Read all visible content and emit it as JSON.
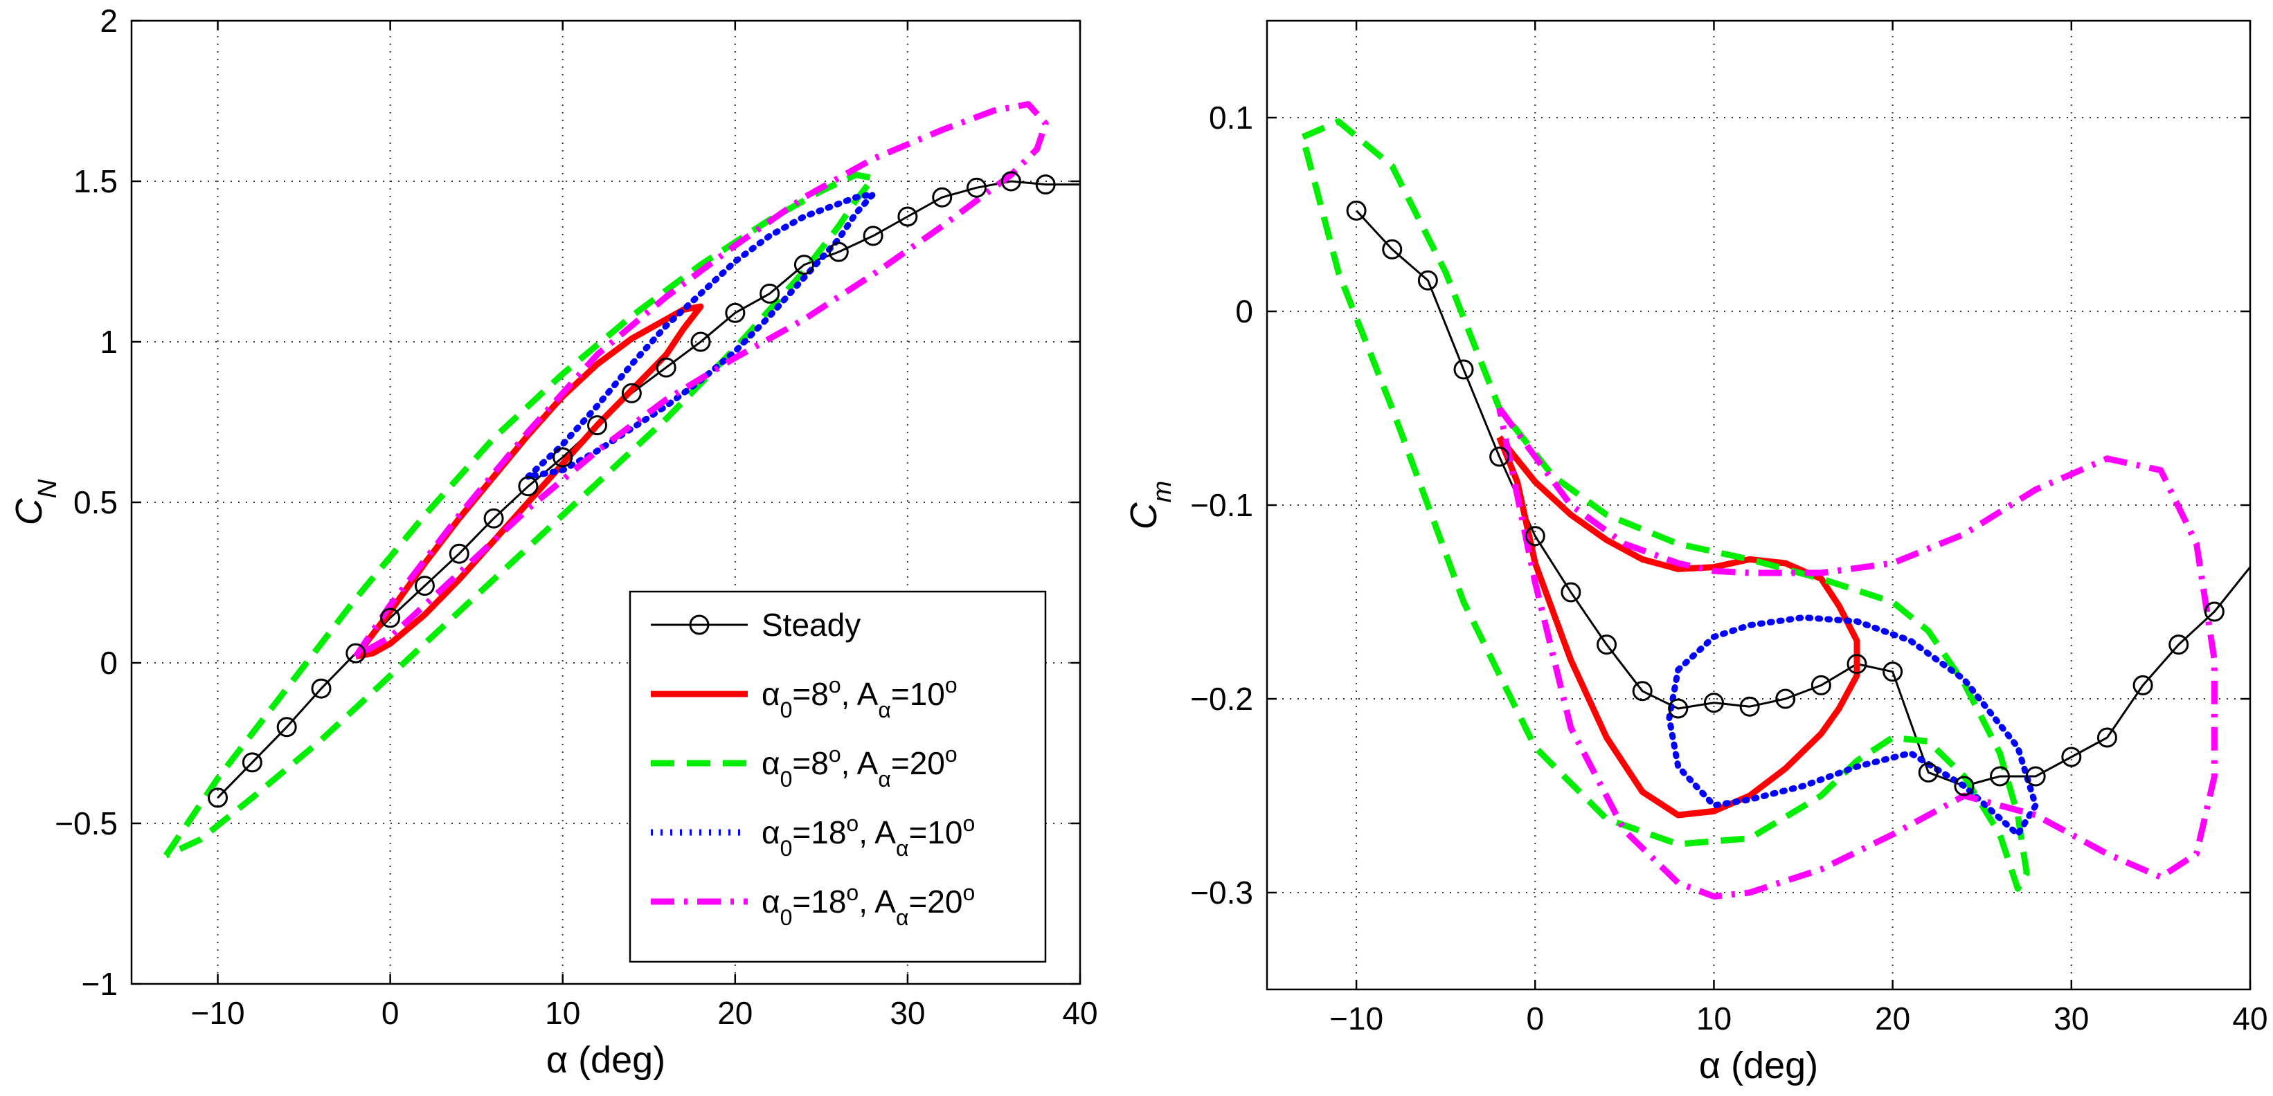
{
  "chart_data": [
    {
      "type": "line",
      "xlabel": "α (deg)",
      "ylabel": "C_N",
      "xlim": [
        -15,
        40
      ],
      "ylim": [
        -1,
        2
      ],
      "grid": true,
      "legend_position": "bottom-right",
      "x_ticks": [
        -10,
        0,
        10,
        20,
        30,
        40
      ],
      "y_ticks": [
        -1,
        -0.5,
        0,
        0.5,
        1,
        1.5,
        2
      ],
      "x_tick_labels": [
        "−10",
        "0",
        "10",
        "20",
        "30",
        "40"
      ],
      "y_tick_labels": [
        "−1",
        "−0.5",
        "0",
        "0.5",
        "1",
        "1.5",
        "2"
      ],
      "series": [
        {
          "name": "Steady",
          "color": "#000000",
          "style": "solid",
          "marker": "circle",
          "x": [
            -10,
            -8,
            -6,
            -4,
            -2,
            0,
            2,
            4,
            6,
            8,
            10,
            12,
            14,
            16,
            18,
            20,
            22,
            24,
            26,
            28,
            30,
            32,
            34,
            36,
            38,
            40
          ],
          "y": [
            -0.42,
            -0.31,
            -0.2,
            -0.08,
            0.03,
            0.14,
            0.24,
            0.34,
            0.45,
            0.55,
            0.64,
            0.74,
            0.84,
            0.92,
            1.0,
            1.09,
            1.15,
            1.24,
            1.28,
            1.33,
            1.39,
            1.45,
            1.48,
            1.5,
            1.49,
            1.49
          ]
        },
        {
          "name": "α0=8°, Aα=10°",
          "color": "#ff0000",
          "style": "solid",
          "x": [
            -2,
            0,
            2,
            4,
            6,
            8,
            10,
            12,
            14,
            16,
            17,
            18,
            17,
            16,
            14,
            12,
            10,
            8,
            6,
            4,
            2,
            0,
            -1,
            -2
          ],
          "y": [
            0.02,
            0.16,
            0.31,
            0.45,
            0.58,
            0.71,
            0.83,
            0.93,
            1.01,
            1.07,
            1.1,
            1.11,
            1.04,
            0.96,
            0.85,
            0.74,
            0.62,
            0.5,
            0.38,
            0.26,
            0.15,
            0.06,
            0.03,
            0.02
          ]
        },
        {
          "name": "α0=8°, Aα=20°",
          "color": "#00ee00",
          "style": "dashed",
          "x": [
            -13,
            -12,
            -10,
            -6,
            -2,
            2,
            6,
            10,
            14,
            18,
            22,
            25,
            27,
            28,
            27,
            26,
            24,
            20,
            16,
            12,
            8,
            4,
            0,
            -4,
            -8,
            -11,
            -13
          ],
          "y": [
            -0.6,
            -0.52,
            -0.36,
            -0.08,
            0.2,
            0.46,
            0.7,
            0.9,
            1.08,
            1.24,
            1.38,
            1.47,
            1.52,
            1.51,
            1.44,
            1.36,
            1.22,
            0.98,
            0.76,
            0.56,
            0.36,
            0.16,
            -0.04,
            -0.24,
            -0.42,
            -0.55,
            -0.6
          ]
        },
        {
          "name": "α0=18°, Aα=10°",
          "color": "#0000ff",
          "style": "dotted",
          "x": [
            8,
            10,
            12,
            14,
            16,
            18,
            20,
            22,
            24,
            26,
            27,
            28,
            27,
            26,
            24,
            22,
            20,
            18,
            16,
            14,
            12,
            10,
            8
          ],
          "y": [
            0.58,
            0.68,
            0.8,
            0.93,
            1.05,
            1.15,
            1.25,
            1.33,
            1.39,
            1.43,
            1.45,
            1.46,
            1.4,
            1.32,
            1.2,
            1.08,
            0.97,
            0.88,
            0.8,
            0.73,
            0.66,
            0.6,
            0.58
          ]
        },
        {
          "name": "α0=18°, Aα=20°",
          "color": "#ff00ff",
          "style": "dashdot",
          "x": [
            -2,
            0,
            4,
            8,
            12,
            16,
            20,
            24,
            28,
            32,
            35,
            37,
            38,
            37.5,
            36,
            32,
            28,
            24,
            20,
            16,
            12,
            8,
            4,
            0,
            -2
          ],
          "y": [
            0.02,
            0.18,
            0.46,
            0.72,
            0.96,
            1.14,
            1.3,
            1.45,
            1.57,
            1.66,
            1.72,
            1.74,
            1.68,
            1.6,
            1.52,
            1.36,
            1.21,
            1.07,
            0.95,
            0.82,
            0.66,
            0.48,
            0.28,
            0.08,
            0.02
          ]
        }
      ]
    },
    {
      "type": "line",
      "xlabel": "α (deg)",
      "ylabel": "C_m",
      "xlim": [
        -15,
        40
      ],
      "ylim": [
        -0.35,
        0.15
      ],
      "grid": true,
      "x_ticks": [
        -10,
        0,
        10,
        20,
        30,
        40
      ],
      "y_ticks": [
        -0.3,
        -0.2,
        -0.1,
        0,
        0.1
      ],
      "x_tick_labels": [
        "−10",
        "0",
        "10",
        "20",
        "30",
        "40"
      ],
      "y_tick_labels": [
        "−0.3",
        "−0.2",
        "−0.1",
        "0",
        "0.1"
      ],
      "series": [
        {
          "name": "Steady",
          "color": "#000000",
          "style": "solid",
          "marker": "circle",
          "x": [
            -10,
            -8,
            -6,
            -4,
            -2,
            0,
            2,
            4,
            6,
            8,
            10,
            12,
            14,
            16,
            18,
            20,
            22,
            24,
            26,
            28,
            30,
            32,
            34,
            36,
            38,
            40
          ],
          "y": [
            0.052,
            0.032,
            0.016,
            -0.03,
            -0.075,
            -0.116,
            -0.145,
            -0.172,
            -0.196,
            -0.205,
            -0.202,
            -0.204,
            -0.2,
            -0.193,
            -0.182,
            -0.186,
            -0.238,
            -0.245,
            -0.24,
            -0.24,
            -0.23,
            -0.22,
            -0.193,
            -0.172,
            -0.155,
            -0.132
          ]
        },
        {
          "name": "α0=8°, Aα=10°",
          "color": "#ff0000",
          "style": "solid",
          "x": [
            -2,
            -1,
            0,
            2,
            4,
            6,
            8,
            10,
            12,
            14,
            16,
            17,
            18,
            18,
            17,
            16,
            14,
            12,
            10,
            8,
            6,
            4,
            2,
            0,
            -2
          ],
          "y": [
            -0.065,
            -0.088,
            -0.13,
            -0.18,
            -0.22,
            -0.248,
            -0.26,
            -0.258,
            -0.25,
            -0.236,
            -0.218,
            -0.205,
            -0.188,
            -0.17,
            -0.152,
            -0.138,
            -0.13,
            -0.128,
            -0.132,
            -0.133,
            -0.128,
            -0.118,
            -0.105,
            -0.088,
            -0.065
          ]
        },
        {
          "name": "α0=8°, Aα=20°",
          "color": "#00ee00",
          "style": "dashed",
          "x": [
            -13,
            -11,
            -8,
            -5,
            -2,
            1,
            4,
            8,
            12,
            16,
            20,
            22,
            24,
            26,
            27,
            27.5,
            27,
            26,
            24,
            22,
            20,
            18,
            16,
            12,
            8,
            4,
            0,
            -4,
            -8,
            -11,
            -13
          ],
          "y": [
            0.09,
            0.098,
            0.075,
            0.02,
            -0.05,
            -0.085,
            -0.105,
            -0.12,
            -0.128,
            -0.138,
            -0.15,
            -0.165,
            -0.192,
            -0.228,
            -0.26,
            -0.29,
            -0.298,
            -0.27,
            -0.24,
            -0.222,
            -0.22,
            -0.232,
            -0.25,
            -0.272,
            -0.275,
            -0.262,
            -0.225,
            -0.15,
            -0.05,
            0.02,
            0.09
          ]
        },
        {
          "name": "α0=18°, Aα=10°",
          "color": "#0000ff",
          "style": "dotted",
          "x": [
            8,
            10,
            12,
            15,
            18,
            21,
            24,
            27,
            28,
            27,
            24,
            21,
            18,
            15,
            12,
            10,
            8,
            7.5,
            8
          ],
          "y": [
            -0.185,
            -0.168,
            -0.162,
            -0.158,
            -0.16,
            -0.17,
            -0.19,
            -0.225,
            -0.255,
            -0.27,
            -0.245,
            -0.228,
            -0.235,
            -0.245,
            -0.252,
            -0.255,
            -0.235,
            -0.21,
            -0.185
          ]
        },
        {
          "name": "α0=18°, Aα=20°",
          "color": "#ff00ff",
          "style": "dashdot",
          "x": [
            -2,
            0,
            2,
            5,
            8,
            10,
            12,
            16,
            20,
            24,
            28,
            32,
            35,
            37,
            38,
            38,
            37,
            35,
            32,
            28,
            24,
            20,
            16,
            12,
            10,
            8,
            5,
            2,
            0,
            -2
          ],
          "y": [
            -0.05,
            -0.075,
            -0.1,
            -0.12,
            -0.13,
            -0.134,
            -0.135,
            -0.135,
            -0.13,
            -0.115,
            -0.092,
            -0.076,
            -0.082,
            -0.12,
            -0.18,
            -0.24,
            -0.28,
            -0.292,
            -0.28,
            -0.26,
            -0.25,
            -0.27,
            -0.288,
            -0.3,
            -0.302,
            -0.295,
            -0.268,
            -0.215,
            -0.14,
            -0.05
          ]
        }
      ]
    }
  ],
  "legend": {
    "entries": [
      {
        "label": "Steady",
        "color": "#000000",
        "style": "solid",
        "marker": "circle"
      },
      {
        "label_html": "α<tspan baseline-shift='sub' font-size='32'>0</tspan>=8<tspan baseline-shift='super' font-size='32'>o</tspan>, A<tspan baseline-shift='sub' font-size='32'>α</tspan>=10<tspan baseline-shift='super' font-size='32'>o</tspan>",
        "label": "α0=8o, Aα=10o",
        "color": "#ff0000",
        "style": "solid"
      },
      {
        "label": "α0=8o, Aα=20o",
        "color": "#00ee00",
        "style": "dashed"
      },
      {
        "label": "α0=18o, Aα=10o",
        "color": "#0000ff",
        "style": "dotted"
      },
      {
        "label": "α0=18o, Aα=20o",
        "color": "#ff00ff",
        "style": "dashdot"
      }
    ]
  }
}
